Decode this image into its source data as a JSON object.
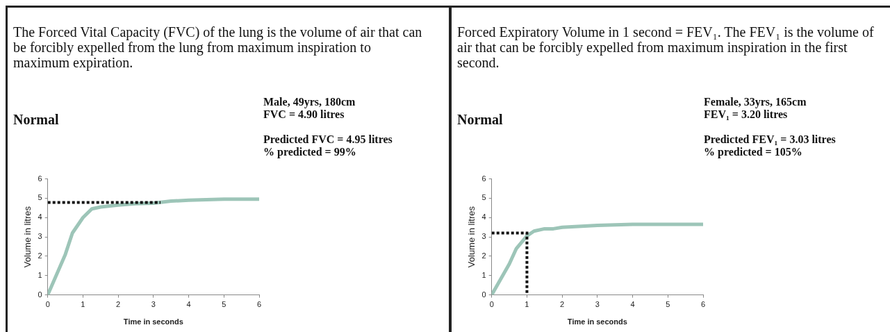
{
  "chart_data": [
    {
      "type": "line",
      "title": "The Forced Vital Capacity (FVC) of the lung is the volume of air that can be forcibly expelled from the lung from maximum inspiration to maximum expiration.",
      "subtitle": "Normal",
      "annotations": [
        "Male, 49yrs, 180cm",
        "FVC = 4.90 litres",
        "Predicted FVC = 4.95 litres",
        "% predicted = 99%"
      ],
      "xlabel": "Time in seconds",
      "ylabel": "Volume in litres",
      "xlim": [
        0,
        6
      ],
      "xticks": [
        0,
        1,
        2,
        3,
        4,
        5,
        6
      ],
      "ylim": [
        0,
        6
      ],
      "yticks": [
        0,
        1,
        2,
        3,
        4,
        5,
        6
      ],
      "grid": false,
      "legend": false,
      "marker": "none",
      "series": [
        {
          "color": "#9dc5b8",
          "line_style": "solid",
          "x": [
            0,
            0.5,
            0.7,
            1,
            1.25,
            1.5,
            2,
            2.5,
            3,
            3.5,
            4,
            5,
            6
          ],
          "values": [
            0,
            2.1,
            3.2,
            4,
            4.45,
            4.55,
            4.65,
            4.72,
            4.75,
            4.85,
            4.9,
            4.95,
            4.95
          ]
        },
        {
          "color": "#111111",
          "line_style": "dotted",
          "x": [
            0,
            3.2
          ],
          "values": [
            4.78,
            4.78
          ]
        }
      ]
    },
    {
      "type": "line",
      "title": "Forced Expiratory Volume in 1 second = FEV₁. The FEV₁ is the volume of air that can be forcibly expelled from maximum inspiration in the first second.",
      "subtitle": "Normal",
      "annotations": [
        "Female, 33yrs, 165cm",
        "FEV₁ = 3.20 litres",
        "Predicted FEV₁ = 3.03 litres",
        "% predicted = 105%"
      ],
      "xlabel": "Time in seconds",
      "ylabel": "Volume in litres",
      "xlim": [
        0,
        6
      ],
      "xticks": [
        0,
        1,
        2,
        3,
        4,
        5,
        6
      ],
      "ylim": [
        0,
        6
      ],
      "yticks": [
        0,
        1,
        2,
        3,
        4,
        5,
        6
      ],
      "grid": false,
      "legend": false,
      "marker": "none",
      "series": [
        {
          "color": "#9dc5b8",
          "line_style": "solid",
          "x": [
            0,
            0.5,
            0.7,
            1,
            1.2,
            1.5,
            1.75,
            2,
            3,
            4,
            5,
            6
          ],
          "values": [
            0,
            1.6,
            2.4,
            3.05,
            3.3,
            3.42,
            3.42,
            3.5,
            3.6,
            3.65,
            3.65,
            3.65
          ]
        },
        {
          "color": "#111111",
          "line_style": "dotted",
          "x": [
            0,
            1,
            1
          ],
          "values": [
            3.2,
            3.2,
            0
          ]
        }
      ]
    }
  ]
}
